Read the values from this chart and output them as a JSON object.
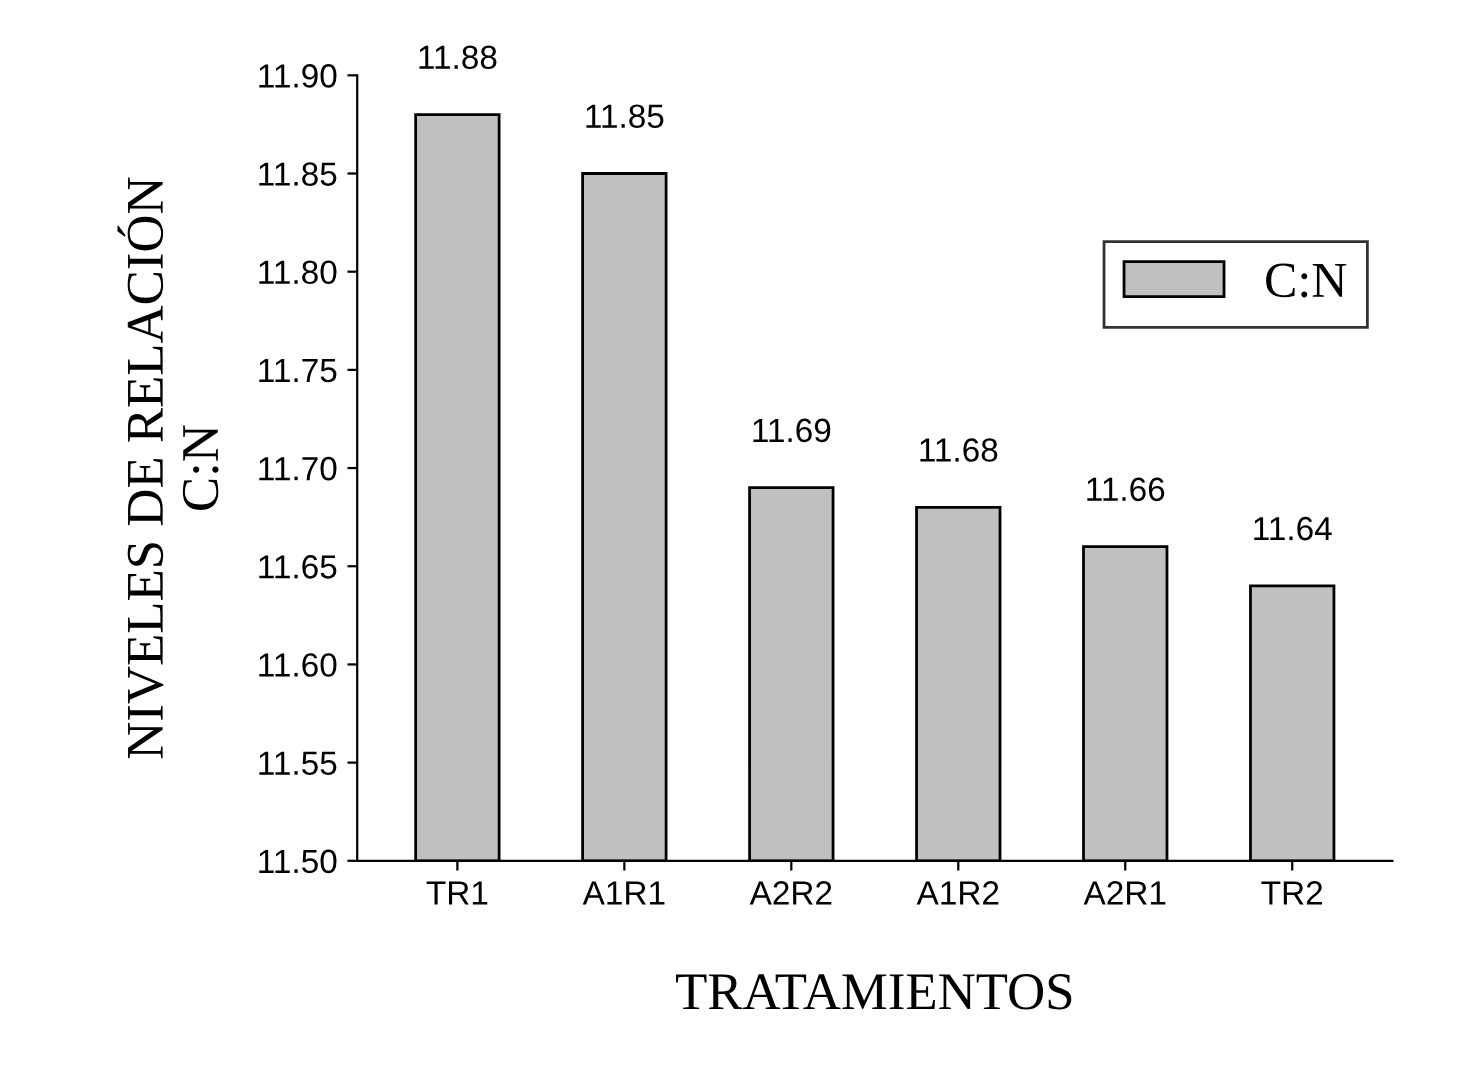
{
  "chart_data": {
    "type": "bar",
    "xlabel": "TRATAMIENTOS",
    "ylabel": "NIVELES DE RELACIÓN\nC:N",
    "categories": [
      "TR1",
      "A1R1",
      "A2R2",
      "A1R2",
      "A2R1",
      "TR2"
    ],
    "series": [
      {
        "name": "C:N",
        "color": "#c0c0c0",
        "values": [
          11.88,
          11.85,
          11.69,
          11.68,
          11.66,
          11.64
        ]
      }
    ],
    "ylim": [
      11.5,
      11.9
    ],
    "yticks": [
      {
        "value": 11.5,
        "label": "11.50"
      },
      {
        "value": 11.55,
        "label": "11.55"
      },
      {
        "value": 11.6,
        "label": "11.60"
      },
      {
        "value": 11.65,
        "label": "11.65"
      },
      {
        "value": 11.7,
        "label": "11.70"
      },
      {
        "value": 11.75,
        "label": "11.75"
      },
      {
        "value": 11.8,
        "label": "11.80"
      },
      {
        "value": 11.85,
        "label": "11.85"
      },
      {
        "value": 11.9,
        "label": "11.90"
      }
    ],
    "data_labels": true,
    "grid": false,
    "legend": "top right"
  }
}
